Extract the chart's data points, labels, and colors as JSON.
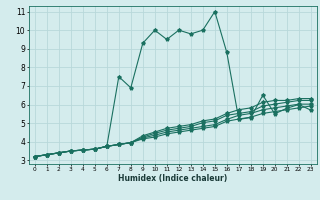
{
  "title": "",
  "xlabel": "Humidex (Indice chaleur)",
  "ylabel": "",
  "background_color": "#d4eced",
  "grid_color": "#b8d8da",
  "line_color": "#1a7060",
  "xlim": [
    -0.5,
    23.5
  ],
  "ylim": [
    2.8,
    11.3
  ],
  "xticks": [
    0,
    1,
    2,
    3,
    4,
    5,
    6,
    7,
    8,
    9,
    10,
    11,
    12,
    13,
    14,
    15,
    16,
    17,
    18,
    19,
    20,
    21,
    22,
    23
  ],
  "yticks": [
    3,
    4,
    5,
    6,
    7,
    8,
    9,
    10,
    11
  ],
  "series": [
    [
      3.2,
      3.3,
      3.4,
      3.5,
      3.55,
      3.6,
      3.75,
      7.5,
      6.9,
      9.3,
      10.0,
      9.5,
      10.0,
      9.8,
      10.0,
      11.0,
      8.8,
      5.2,
      5.3,
      6.5,
      5.5,
      5.8,
      6.0,
      5.7
    ],
    [
      3.2,
      3.3,
      3.4,
      3.5,
      3.55,
      3.6,
      3.75,
      3.85,
      3.95,
      4.15,
      4.25,
      4.42,
      4.52,
      4.62,
      4.72,
      4.82,
      5.1,
      5.22,
      5.32,
      5.52,
      5.62,
      5.72,
      5.82,
      5.92
    ],
    [
      3.2,
      3.3,
      3.4,
      3.5,
      3.55,
      3.6,
      3.75,
      3.85,
      3.95,
      4.2,
      4.35,
      4.52,
      4.62,
      4.72,
      4.82,
      4.92,
      5.2,
      5.42,
      5.52,
      5.72,
      5.82,
      5.92,
      6.02,
      6.02
    ],
    [
      3.2,
      3.3,
      3.4,
      3.5,
      3.55,
      3.6,
      3.75,
      3.85,
      3.95,
      4.25,
      4.45,
      4.62,
      4.72,
      4.82,
      5.02,
      5.12,
      5.42,
      5.52,
      5.62,
      5.92,
      6.02,
      6.12,
      6.22,
      6.22
    ],
    [
      3.2,
      3.3,
      3.4,
      3.5,
      3.55,
      3.6,
      3.75,
      3.85,
      3.95,
      4.32,
      4.52,
      4.72,
      4.82,
      4.92,
      5.12,
      5.22,
      5.52,
      5.72,
      5.82,
      6.12,
      6.22,
      6.22,
      6.32,
      6.32
    ]
  ]
}
